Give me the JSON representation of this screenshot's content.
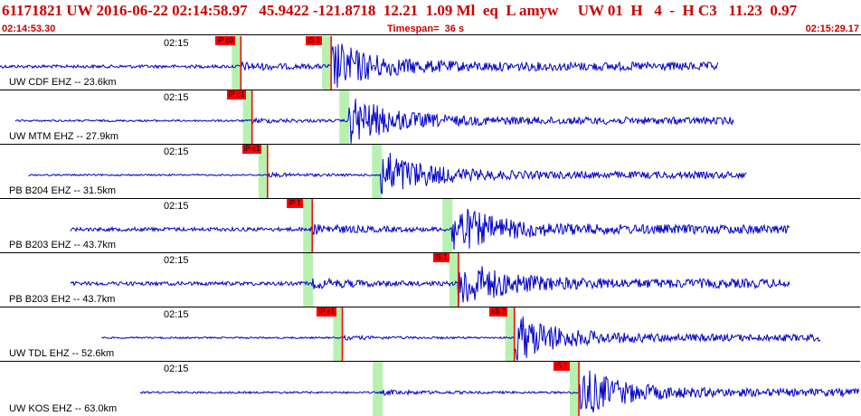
{
  "header": {
    "event_line": "61171821 UW 2016-06-22 02:14:58.97   45.9422 -121.8718  12.21  1.09 Ml  eq  L amyw     UW 01  H   4  -  H C3   11.23  0.97",
    "start_time": "02:14:53.30",
    "timespan": "Timespan=  36 s",
    "end_time": "02:15:29.17"
  },
  "colors": {
    "trace": "#0000cc",
    "pick_line": "#ff0000",
    "window": "#b8f0b0",
    "header_text": "#cc0000"
  },
  "panels": [
    {
      "time": "02:15",
      "station": "UW CDF EHZ -- 23.6km",
      "trace_start": 0.0,
      "trace_end": 0.835,
      "amp": 0.1,
      "p": 0.28,
      "s": 0.385,
      "pick_labels": [
        "iP c0",
        "iS 1"
      ]
    },
    {
      "time": "02:15",
      "station": "UW MTM EHZ -- 27.9km",
      "trace_start": 0.018,
      "trace_end": 0.853,
      "amp": 0.06,
      "p": 0.293,
      "s": 0.405,
      "pick_labels": [
        "iP c1",
        ""
      ]
    },
    {
      "time": "02:15",
      "station": "PB B204 EHZ -- 31.5km",
      "trace_start": 0.033,
      "trace_end": 0.868,
      "amp": 0.05,
      "p": 0.311,
      "s": 0.443,
      "pick_labels": [
        "iP c1",
        ""
      ]
    },
    {
      "time": "02:15",
      "station": "PB B203 EHZ -- 43.7km",
      "trace_start": 0.082,
      "trace_end": 0.918,
      "amp": 0.12,
      "p": 0.363,
      "s": 0.525,
      "pick_labels": [
        "iP 1",
        ""
      ]
    },
    {
      "time": "02:15",
      "station": "PB B203 EH2 -- 43.7km",
      "trace_start": 0.082,
      "trace_end": 0.918,
      "amp": 0.12,
      "p": 0.363,
      "s": 0.533,
      "pick_labels": [
        "",
        "iS 1"
      ]
    },
    {
      "time": "02:15",
      "station": "UW TDL EHZ -- 52.6km",
      "trace_start": 0.118,
      "trace_end": 0.955,
      "amp": 0.05,
      "p": 0.398,
      "s": 0.598,
      "pick_labels": [
        "iP c1",
        "eS 2"
      ]
    },
    {
      "time": "02:15",
      "station": "UW KOS EHZ -- 63.0km",
      "trace_start": 0.163,
      "trace_end": 1.0,
      "amp": 0.06,
      "p": 0.444,
      "s": 0.673,
      "pick_labels": [
        "",
        "iS 1"
      ]
    }
  ]
}
